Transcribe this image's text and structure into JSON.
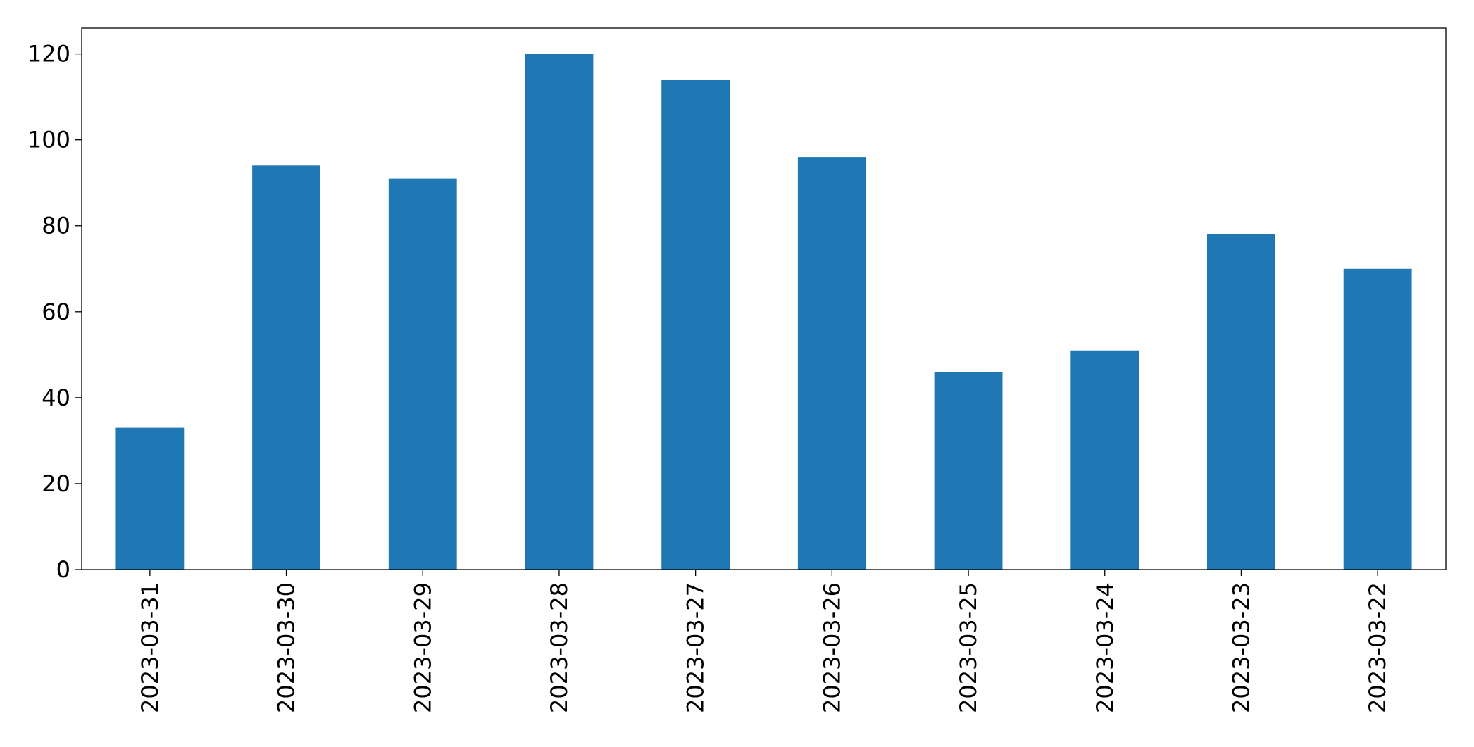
{
  "chart_data": {
    "type": "bar",
    "categories": [
      "2023-03-31",
      "2023-03-30",
      "2023-03-29",
      "2023-03-28",
      "2023-03-27",
      "2023-03-26",
      "2023-03-25",
      "2023-03-24",
      "2023-03-23",
      "2023-03-22"
    ],
    "values": [
      33,
      94,
      91,
      120,
      114,
      96,
      46,
      51,
      78,
      70
    ],
    "color": "#1f77b4",
    "ylim": [
      0,
      126
    ],
    "yticks": [
      0,
      20,
      40,
      60,
      80,
      100,
      120
    ],
    "grid": false
  }
}
